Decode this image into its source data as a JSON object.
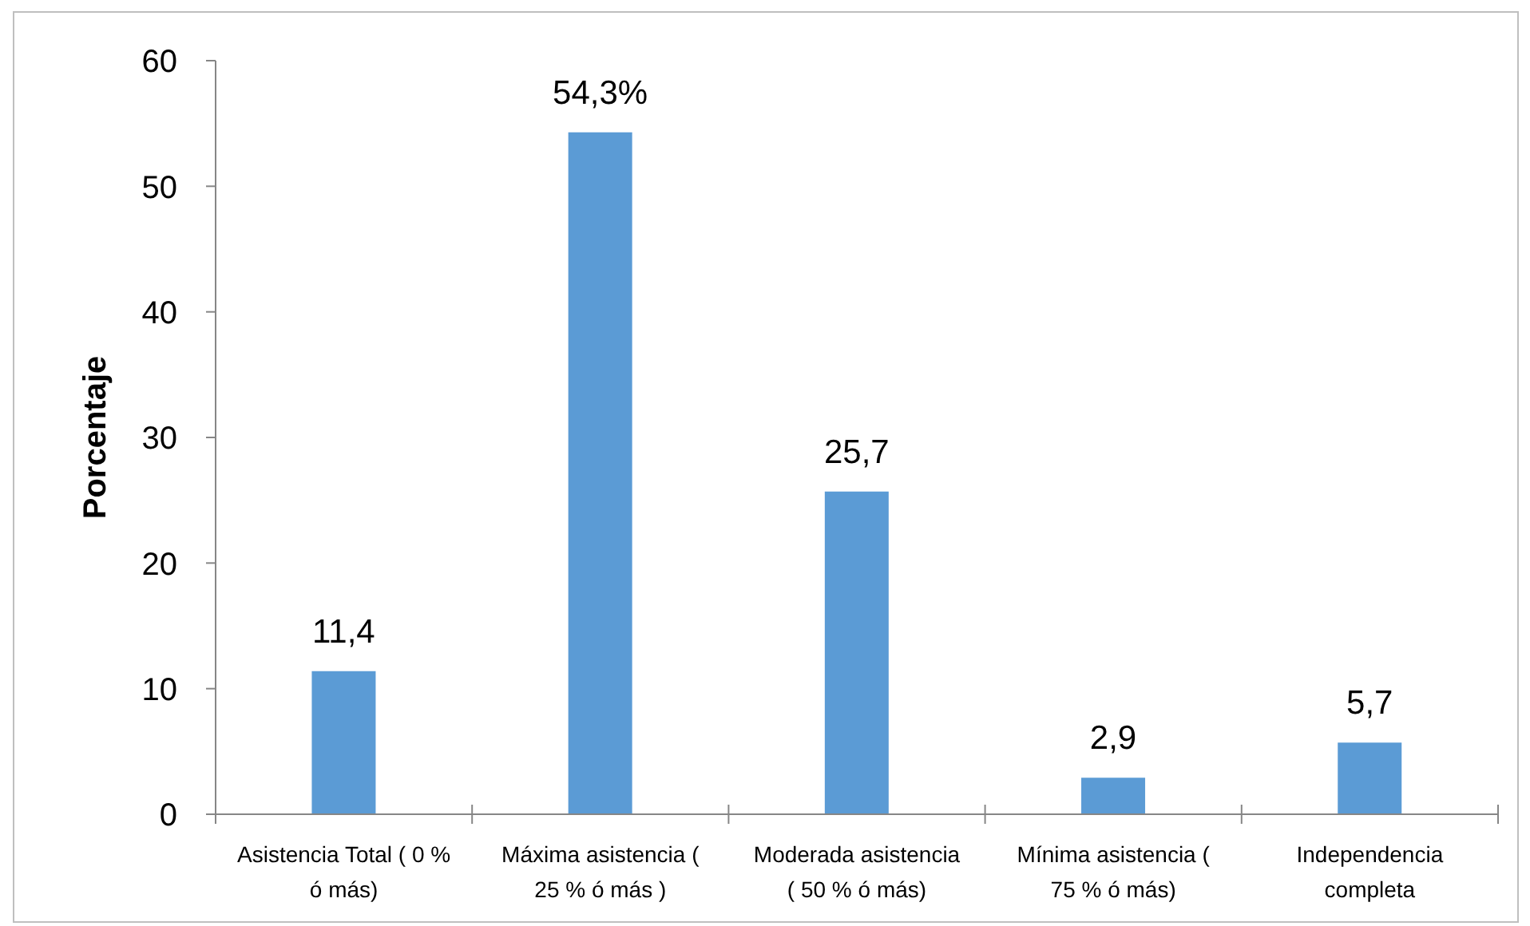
{
  "chart_data": {
    "type": "bar",
    "ylabel": "Porcentaje",
    "categories": [
      "Asistencia Total ( 0 % ó más)",
      "Máxima asistencia ( 25 % ó más )",
      "Moderada asistencia ( 50 % ó más)",
      "Mínima asistencia ( 75 % ó más)",
      "Independencia completa"
    ],
    "values": [
      11.4,
      54.3,
      25.7,
      2.9,
      5.7
    ],
    "value_labels": [
      "11,4",
      "54,3%",
      "25,7",
      "2,9",
      "5,7"
    ],
    "color": "#5b9bd5",
    "ylim": [
      0,
      60
    ],
    "yticks": [
      0,
      10,
      20,
      30,
      40,
      50,
      60
    ]
  }
}
